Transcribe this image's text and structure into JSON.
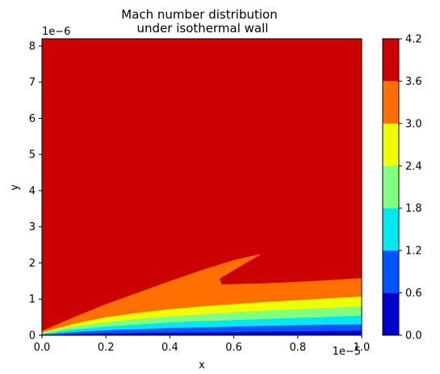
{
  "chart_data": {
    "type": "heatmap",
    "subtype": "filled-contour",
    "title": [
      "Mach number distribution",
      "under isothermal wall"
    ],
    "xlabel": "x",
    "ylabel": "y",
    "x_offset_text": "1e−5",
    "y_offset_text": "1e−6",
    "xlim": [
      0,
      1.0
    ],
    "ylim": [
      0,
      8.2
    ],
    "x_ticks": [
      "0.0",
      "0.2",
      "0.4",
      "0.6",
      "0.8",
      "1.0"
    ],
    "y_ticks": [
      "0",
      "1",
      "2",
      "3",
      "4",
      "5",
      "6",
      "7",
      "8"
    ],
    "x_tick_values": [
      0,
      0.2,
      0.4,
      0.6,
      0.8,
      1.0
    ],
    "y_tick_values": [
      0,
      1,
      2,
      3,
      4,
      5,
      6,
      7,
      8
    ],
    "colorbar": {
      "levels": [
        0.0,
        0.6,
        1.2,
        1.8,
        2.4,
        3.0,
        3.6,
        4.2
      ],
      "labels": [
        "0.0",
        "0.6",
        "1.2",
        "1.8",
        "2.4",
        "3.0",
        "3.6",
        "4.2"
      ],
      "colors": [
        "#0000cc",
        "#0055ff",
        "#00e8f0",
        "#80ff80",
        "#f0ff00",
        "#ff7000",
        "#cc0000"
      ]
    },
    "background_band": 6,
    "regions": [
      {
        "band": 5,
        "polygon": [
          [
            0.0,
            0.0
          ],
          [
            0.0,
            0.12
          ],
          [
            0.1,
            0.5
          ],
          [
            0.2,
            0.86
          ],
          [
            0.3,
            1.18
          ],
          [
            0.4,
            1.5
          ],
          [
            0.5,
            1.8
          ],
          [
            0.6,
            2.08
          ],
          [
            0.68,
            2.24
          ],
          [
            0.685,
            2.24
          ],
          [
            0.6,
            1.8
          ],
          [
            0.555,
            1.56
          ],
          [
            0.563,
            1.4
          ],
          [
            0.7,
            1.44
          ],
          [
            0.85,
            1.5
          ],
          [
            1.0,
            1.58
          ],
          [
            1.0,
            0.0
          ]
        ]
      },
      {
        "band": 4,
        "polygon": [
          [
            0.0,
            0.0
          ],
          [
            0.0,
            0.08
          ],
          [
            0.1,
            0.32
          ],
          [
            0.2,
            0.5
          ],
          [
            0.3,
            0.62
          ],
          [
            0.4,
            0.72
          ],
          [
            0.5,
            0.8
          ],
          [
            0.6,
            0.86
          ],
          [
            0.7,
            0.92
          ],
          [
            0.8,
            0.97
          ],
          [
            0.9,
            1.02
          ],
          [
            1.0,
            1.07
          ],
          [
            1.0,
            0.0
          ]
        ]
      },
      {
        "band": 3,
        "polygon": [
          [
            0.0,
            0.0
          ],
          [
            0.0,
            0.06
          ],
          [
            0.1,
            0.24
          ],
          [
            0.2,
            0.36
          ],
          [
            0.3,
            0.45
          ],
          [
            0.4,
            0.52
          ],
          [
            0.5,
            0.58
          ],
          [
            0.6,
            0.63
          ],
          [
            0.7,
            0.68
          ],
          [
            0.8,
            0.72
          ],
          [
            0.9,
            0.76
          ],
          [
            1.0,
            0.8
          ],
          [
            1.0,
            0.0
          ]
        ]
      },
      {
        "band": 2,
        "polygon": [
          [
            0.0,
            0.0
          ],
          [
            0.0,
            0.04
          ],
          [
            0.1,
            0.16
          ],
          [
            0.2,
            0.24
          ],
          [
            0.3,
            0.3
          ],
          [
            0.4,
            0.35
          ],
          [
            0.5,
            0.39
          ],
          [
            0.6,
            0.42
          ],
          [
            0.7,
            0.45
          ],
          [
            0.8,
            0.48
          ],
          [
            0.9,
            0.51
          ],
          [
            1.0,
            0.54
          ],
          [
            1.0,
            0.0
          ]
        ]
      },
      {
        "band": 1,
        "polygon": [
          [
            0.0,
            0.0
          ],
          [
            0.0,
            0.02
          ],
          [
            0.1,
            0.09
          ],
          [
            0.2,
            0.14
          ],
          [
            0.3,
            0.17
          ],
          [
            0.4,
            0.2
          ],
          [
            0.5,
            0.22
          ],
          [
            0.6,
            0.24
          ],
          [
            0.7,
            0.26
          ],
          [
            0.8,
            0.28
          ],
          [
            0.9,
            0.29
          ],
          [
            1.0,
            0.3
          ],
          [
            1.0,
            0.0
          ]
        ]
      },
      {
        "band": 0,
        "polygon": [
          [
            0.0,
            0.0
          ],
          [
            0.1,
            0.03
          ],
          [
            0.2,
            0.05
          ],
          [
            0.3,
            0.06
          ],
          [
            0.4,
            0.07
          ],
          [
            0.5,
            0.08
          ],
          [
            0.6,
            0.09
          ],
          [
            0.7,
            0.1
          ],
          [
            0.8,
            0.11
          ],
          [
            0.9,
            0.12
          ],
          [
            1.0,
            0.13
          ],
          [
            1.0,
            0.0
          ]
        ]
      }
    ]
  }
}
